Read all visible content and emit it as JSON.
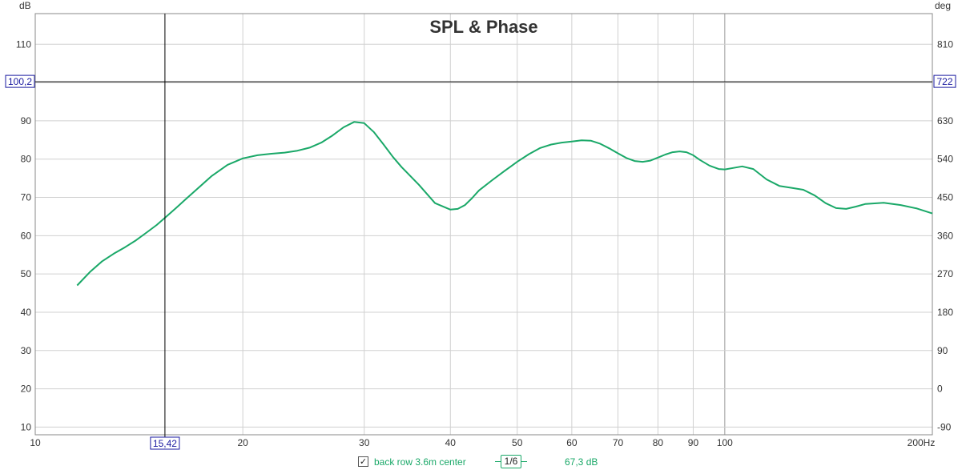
{
  "chart_data": {
    "type": "line",
    "title": "SPL & Phase",
    "xscale": "log",
    "xlim": [
      10,
      200
    ],
    "ylim": [
      8,
      118
    ],
    "ylim_right": [
      -108,
      882
    ],
    "ylabel": "dB",
    "ylabel_right": "deg",
    "x_ticks": [
      10,
      20,
      30,
      40,
      50,
      60,
      70,
      80,
      90,
      100,
      200
    ],
    "x_tick_labels": [
      "10",
      "20",
      "30",
      "40",
      "50",
      "60",
      "70",
      "80",
      "90",
      "100",
      "200Hz"
    ],
    "y_ticks": [
      10,
      20,
      30,
      40,
      50,
      60,
      70,
      80,
      90,
      110
    ],
    "y_tick_labels": [
      "10",
      "20",
      "30",
      "40",
      "50",
      "60",
      "70",
      "80",
      "90",
      "110"
    ],
    "y_ticks_right": [
      -90,
      0,
      90,
      180,
      270,
      360,
      450,
      540,
      630,
      810
    ],
    "y_tick_labels_right": [
      "-90",
      "0",
      "90",
      "180",
      "270",
      "360",
      "450",
      "540",
      "630",
      "810"
    ],
    "grid": true,
    "cursor": {
      "x": 15.42,
      "x_label": "15,42",
      "y": 100.2,
      "y_label": "100,2",
      "y_right_label": "722"
    },
    "series": [
      {
        "name": "back row 3.6m center",
        "color": "#1aa868",
        "x": [
          11.5,
          12.0,
          12.5,
          13.0,
          13.5,
          14.0,
          14.5,
          15.0,
          15.5,
          16.0,
          16.5,
          17.0,
          18.0,
          19.0,
          20.0,
          21.0,
          22.0,
          23.0,
          24.0,
          25.0,
          26.0,
          27.0,
          28.0,
          29.0,
          30.0,
          31.0,
          32.0,
          33.0,
          34.0,
          36.0,
          38.0,
          40.0,
          41.0,
          42.0,
          43.0,
          44.0,
          46.0,
          48.0,
          50.0,
          52.0,
          54.0,
          56.0,
          58.0,
          60.0,
          62.0,
          64.0,
          66.0,
          68.0,
          70.0,
          72.0,
          74.0,
          76.0,
          78.0,
          80.0,
          82.0,
          84.0,
          86.0,
          88.0,
          90.0,
          92.0,
          95.0,
          98.0,
          100.0,
          103.0,
          106.0,
          110.0,
          115.0,
          120.0,
          125.0,
          130.0,
          135.0,
          140.0,
          145.0,
          150.0,
          155.0,
          160.0,
          170.0,
          180.0,
          190.0,
          200.0
        ],
        "y": [
          47.0,
          50.5,
          53.3,
          55.3,
          57.0,
          58.8,
          60.8,
          62.8,
          65.0,
          67.2,
          69.4,
          71.5,
          75.5,
          78.5,
          80.2,
          81.0,
          81.4,
          81.7,
          82.2,
          83.0,
          84.3,
          86.2,
          88.3,
          89.7,
          89.4,
          87.0,
          83.8,
          80.6,
          77.9,
          73.3,
          68.5,
          66.8,
          67.0,
          68.0,
          69.8,
          71.8,
          74.5,
          77.0,
          79.3,
          81.3,
          82.9,
          83.8,
          84.3,
          84.6,
          84.9,
          84.8,
          84.0,
          82.8,
          81.5,
          80.3,
          79.5,
          79.3,
          79.6,
          80.4,
          81.2,
          81.8,
          82.0,
          81.8,
          81.0,
          79.8,
          78.3,
          77.4,
          77.3,
          77.7,
          78.1,
          77.4,
          74.7,
          73.0,
          72.5,
          72.0,
          70.5,
          68.5,
          67.2,
          67.0,
          67.6,
          68.3,
          68.6,
          68.0,
          67.1,
          65.8
        ]
      }
    ]
  },
  "legend": {
    "checkbox_mark": "✓",
    "series_name": "back row 3.6m center",
    "smoothing": "1/6",
    "cursor_value": "67,3 dB"
  }
}
